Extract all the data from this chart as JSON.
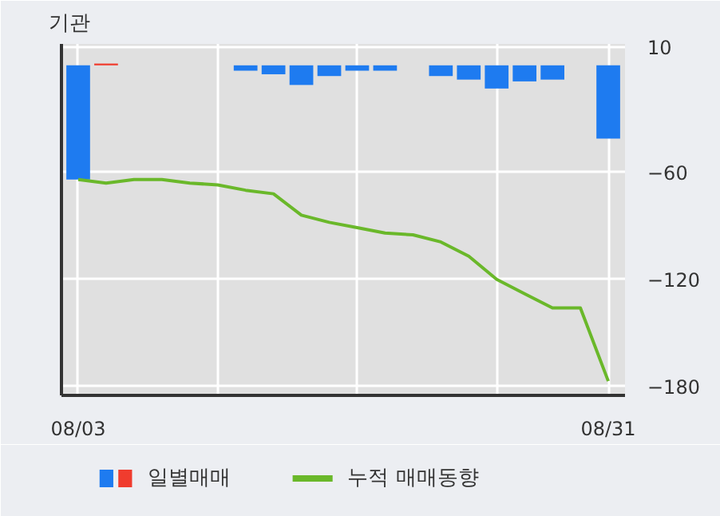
{
  "chart_data": {
    "type": "bar",
    "title": "기관",
    "categories": [
      "08/03",
      null,
      null,
      null,
      null,
      null,
      null,
      null,
      null,
      null,
      null,
      null,
      null,
      null,
      null,
      null,
      null,
      null,
      null,
      "08/31"
    ],
    "series": [
      {
        "name": "일별매매",
        "colors": [
          "#1e7bf0",
          "#f03c2e",
          "#1e7bf0",
          "#1e7bf0",
          "#1e7bf0",
          "#1e7bf0",
          "#1e7bf0",
          "#1e7bf0",
          "#1e7bf0",
          "#1e7bf0",
          "#1e7bf0",
          "#1e7bf0",
          "#1e7bf0",
          "#1e7bf0",
          "#1e7bf0",
          "#1e7bf0",
          "#1e7bf0",
          "#1e7bf0",
          "#1e7bf0",
          "#1e7bf0"
        ],
        "values": [
          -64,
          1,
          0,
          0,
          0,
          0,
          -3,
          -5,
          -11,
          -6,
          -3,
          -3,
          0,
          -6,
          -8,
          -13,
          -9,
          -8,
          0,
          -41
        ]
      },
      {
        "type": "line",
        "name": "누적 매매동향",
        "color": "#6ab82a",
        "values": [
          -64,
          -66,
          -64,
          -64,
          -66,
          -67,
          -70,
          -72,
          -84,
          -88,
          -91,
          -94,
          -95,
          -99,
          -107,
          -120,
          -128,
          -136,
          -136,
          -177
        ]
      }
    ],
    "ylim": [
      -185,
      12
    ],
    "yticks": [
      10,
      -60,
      -120,
      -180
    ],
    "grid": true,
    "legend": "bottom"
  }
}
